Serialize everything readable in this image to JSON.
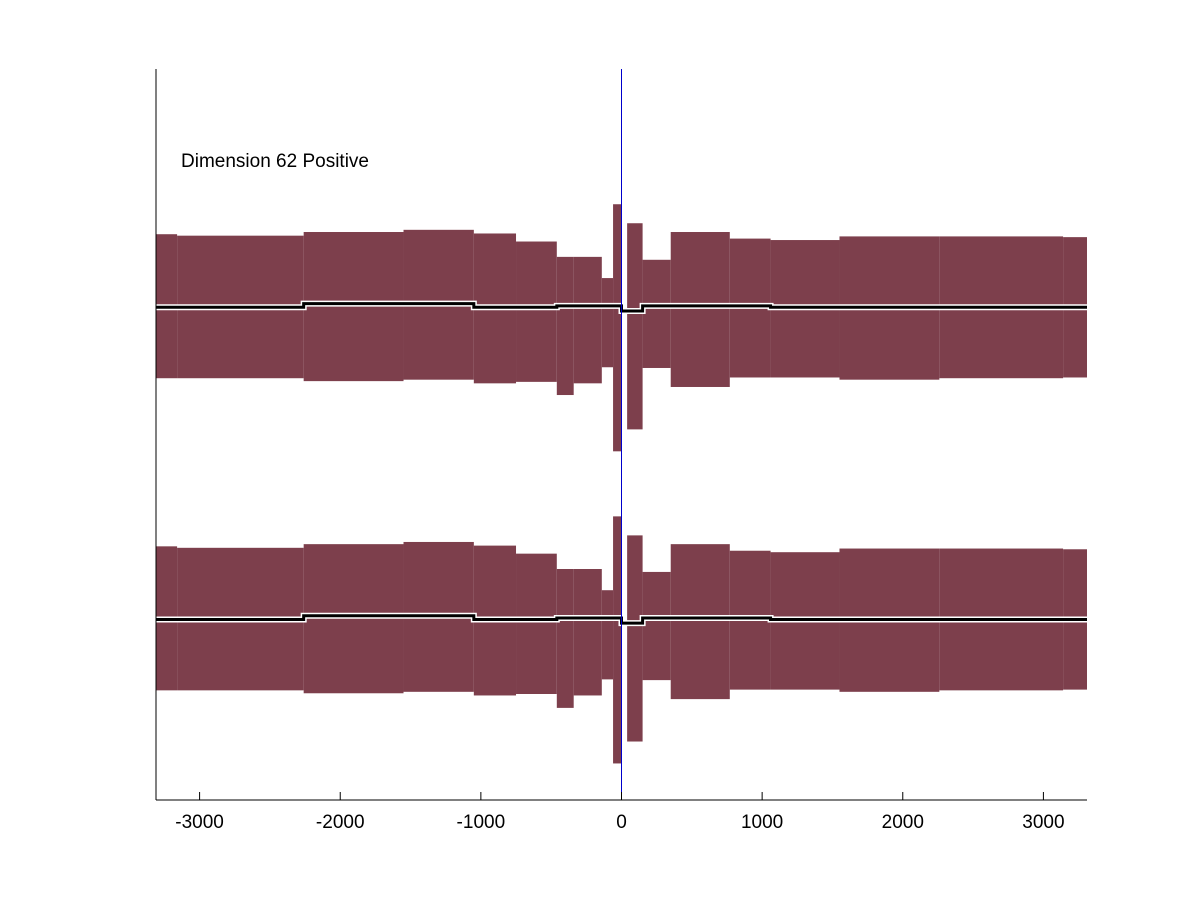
{
  "chart_data": {
    "type": "area",
    "title": "Dimension 62 Positive",
    "xlabel": "",
    "ylabel": "",
    "xlim": [
      -3310,
      3310
    ],
    "ylim": [
      0,
      1
    ],
    "x_ticks": [
      -3000,
      -2000,
      -1000,
      0,
      1000,
      2000,
      3000
    ],
    "x_tick_labels": [
      "-3000",
      "-2000",
      "-1000",
      "0",
      "1000",
      "2000",
      "3000"
    ],
    "y_ticks_visible": false,
    "grid": false,
    "legend": "none",
    "band_color": "#7d3f4c",
    "mean_color": "#000000",
    "zero_line_color": "#0000cc",
    "zero_line_x": 0,
    "series": [
      {
        "steps": [
          {
            "x0": -3310,
            "x1": -3160,
            "lo": 0.577,
            "hi": 0.774
          },
          {
            "x0": -3160,
            "x1": -2260,
            "lo": 0.577,
            "hi": 0.772
          },
          {
            "x0": -2260,
            "x1": -1550,
            "lo": 0.573,
            "hi": 0.777
          },
          {
            "x0": -1550,
            "x1": -1050,
            "lo": 0.575,
            "hi": 0.78
          },
          {
            "x0": -1050,
            "x1": -750,
            "lo": 0.57,
            "hi": 0.775
          },
          {
            "x0": -750,
            "x1": -460,
            "lo": 0.572,
            "hi": 0.764
          },
          {
            "x0": -460,
            "x1": -340,
            "lo": 0.554,
            "hi": 0.743
          },
          {
            "x0": -340,
            "x1": -140,
            "lo": 0.57,
            "hi": 0.743
          },
          {
            "x0": -140,
            "x1": -60,
            "lo": 0.592,
            "hi": 0.714
          },
          {
            "x0": -60,
            "x1": 0,
            "lo": 0.477,
            "hi": 0.815
          },
          {
            "x0": 40,
            "x1": 150,
            "lo": 0.507,
            "hi": 0.789
          },
          {
            "x0": 150,
            "x1": 350,
            "lo": 0.591,
            "hi": 0.739
          },
          {
            "x0": 350,
            "x1": 770,
            "lo": 0.565,
            "hi": 0.777
          },
          {
            "x0": 770,
            "x1": 1060,
            "lo": 0.578,
            "hi": 0.768
          },
          {
            "x0": 1060,
            "x1": 1550,
            "lo": 0.578,
            "hi": 0.766
          },
          {
            "x0": 1550,
            "x1": 2260,
            "lo": 0.575,
            "hi": 0.771
          },
          {
            "x0": 2260,
            "x1": 3140,
            "lo": 0.577,
            "hi": 0.771
          },
          {
            "x0": 3140,
            "x1": 3310,
            "lo": 0.578,
            "hi": 0.77
          }
        ],
        "mean": [
          {
            "x0": -3310,
            "x1": -2260,
            "y": 0.674
          },
          {
            "x0": -2260,
            "x1": -1050,
            "y": 0.679
          },
          {
            "x0": -1050,
            "x1": -460,
            "y": 0.674
          },
          {
            "x0": -460,
            "x1": 0,
            "y": 0.676
          },
          {
            "x0": 0,
            "x1": 150,
            "y": 0.669
          },
          {
            "x0": 150,
            "x1": 1060,
            "y": 0.676
          },
          {
            "x0": 1060,
            "x1": 3310,
            "y": 0.674
          }
        ]
      },
      {
        "steps": [
          {
            "x0": -3310,
            "x1": -3160,
            "lo": 0.15,
            "hi": 0.347
          },
          {
            "x0": -3160,
            "x1": -2260,
            "lo": 0.15,
            "hi": 0.345
          },
          {
            "x0": -2260,
            "x1": -1550,
            "lo": 0.146,
            "hi": 0.35
          },
          {
            "x0": -1550,
            "x1": -1050,
            "lo": 0.148,
            "hi": 0.353
          },
          {
            "x0": -1050,
            "x1": -750,
            "lo": 0.143,
            "hi": 0.348
          },
          {
            "x0": -750,
            "x1": -460,
            "lo": 0.145,
            "hi": 0.337
          },
          {
            "x0": -460,
            "x1": -340,
            "lo": 0.126,
            "hi": 0.316
          },
          {
            "x0": -340,
            "x1": -140,
            "lo": 0.143,
            "hi": 0.316
          },
          {
            "x0": -140,
            "x1": -60,
            "lo": 0.165,
            "hi": 0.287
          },
          {
            "x0": -60,
            "x1": 0,
            "lo": 0.05,
            "hi": 0.388
          },
          {
            "x0": 40,
            "x1": 150,
            "lo": 0.08,
            "hi": 0.362
          },
          {
            "x0": 150,
            "x1": 350,
            "lo": 0.164,
            "hi": 0.312
          },
          {
            "x0": 350,
            "x1": 770,
            "lo": 0.138,
            "hi": 0.35
          },
          {
            "x0": 770,
            "x1": 1060,
            "lo": 0.151,
            "hi": 0.341
          },
          {
            "x0": 1060,
            "x1": 1550,
            "lo": 0.151,
            "hi": 0.339
          },
          {
            "x0": 1550,
            "x1": 2260,
            "lo": 0.148,
            "hi": 0.344
          },
          {
            "x0": 2260,
            "x1": 3140,
            "lo": 0.15,
            "hi": 0.344
          },
          {
            "x0": 3140,
            "x1": 3310,
            "lo": 0.151,
            "hi": 0.343
          }
        ],
        "mean": [
          {
            "x0": -3310,
            "x1": -2260,
            "y": 0.247
          },
          {
            "x0": -2260,
            "x1": -1050,
            "y": 0.252
          },
          {
            "x0": -1050,
            "x1": -460,
            "y": 0.247
          },
          {
            "x0": -460,
            "x1": 0,
            "y": 0.249
          },
          {
            "x0": 0,
            "x1": 150,
            "y": 0.242
          },
          {
            "x0": 150,
            "x1": 1060,
            "y": 0.249
          },
          {
            "x0": 1060,
            "x1": 3310,
            "y": 0.247
          }
        ]
      }
    ]
  }
}
